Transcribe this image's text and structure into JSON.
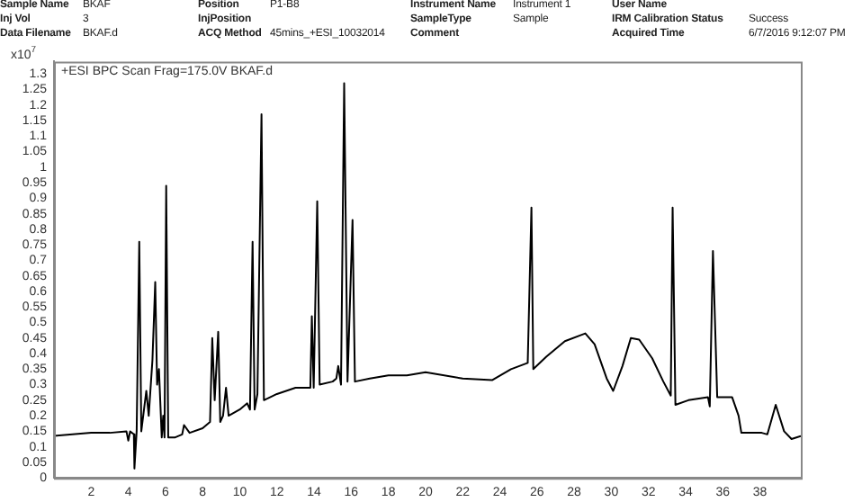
{
  "chart_data": {
    "type": "line",
    "title": "+ESI BPC Scan Frag=175.0V BKAF.d",
    "ylabel": "x10$^{7}$",
    "annotations": [
      "Sample Name",
      "BKAF",
      "Position",
      "P1-B8",
      "Instrument Name",
      "Instrument 1",
      "User Name",
      "Inj Vol",
      "3",
      "InjPosition",
      "SampleType",
      "Sample",
      "IRM Calibration Status",
      "Success",
      "Data Filename",
      "BKAF.d",
      "ACQ Method",
      "45mins_+ESI_10032014",
      "Comment",
      "Acquired Time",
      "6/7/2016 9:12:07 PM"
    ],
    "color": "#000000",
    "grid": false,
    "legend": false,
    "marker": "none",
    "line_style": "solid",
    "xlim": [
      0,
      40.2
    ],
    "xticks": [
      2,
      4,
      6,
      8,
      10,
      12,
      14,
      16,
      18,
      20,
      22,
      24,
      26,
      28,
      30,
      32,
      34,
      36,
      38
    ],
    "ylim": [
      0,
      1.34
    ],
    "yticks": [
      0,
      0.05,
      0.1,
      0.15,
      0.2,
      0.25,
      0.3,
      0.35,
      0.4,
      0.45,
      0.5,
      0.55,
      0.6,
      0.65,
      0.7,
      0.75,
      0.8,
      0.85,
      0.9,
      0.95,
      1,
      1.05,
      1.1,
      1.15,
      1.2,
      1.25,
      1.3
    ],
    "x": [
      0,
      1,
      2,
      3,
      3.9,
      4.0,
      4.1,
      4.3,
      4.33,
      4.45,
      4.59,
      4.7,
      4.97,
      5.1,
      5.3,
      5.45,
      5.55,
      5.65,
      5.8,
      5.88,
      5.95,
      6.04,
      6.15,
      6.5,
      6.9,
      7.0,
      7.3,
      8,
      8.4,
      8.52,
      8.65,
      8.84,
      8.95,
      9.1,
      9.26,
      9.4,
      10,
      10.4,
      10.55,
      10.69,
      10.8,
      10.95,
      11.17,
      11.3,
      12,
      13,
      13.8,
      13.88,
      13.98,
      14.17,
      14.3,
      15,
      15.2,
      15.3,
      15.45,
      15.62,
      15.8,
      16.07,
      16.2,
      17,
      18,
      19,
      20,
      22,
      23.6,
      24.6,
      25.5,
      25.7,
      25.8,
      26.5,
      27.5,
      28.6,
      29.1,
      29.75,
      30.1,
      30.6,
      31.05,
      31.5,
      32.2,
      32.8,
      33.2,
      33.3,
      33.45,
      34.15,
      35.2,
      35.3,
      35.47,
      35.7,
      36.5,
      36.85,
      37.0,
      38.1,
      38.4,
      38.85,
      39.3,
      39.7,
      40.2
    ],
    "values": [
      0.135,
      0.14,
      0.145,
      0.145,
      0.15,
      0.12,
      0.15,
      0.14,
      0.03,
      0.15,
      0.76,
      0.15,
      0.28,
      0.2,
      0.38,
      0.63,
      0.3,
      0.35,
      0.13,
      0.2,
      0.13,
      0.94,
      0.13,
      0.13,
      0.14,
      0.17,
      0.145,
      0.16,
      0.18,
      0.45,
      0.25,
      0.47,
      0.18,
      0.2,
      0.29,
      0.2,
      0.22,
      0.24,
      0.22,
      0.76,
      0.22,
      0.27,
      1.17,
      0.25,
      0.27,
      0.29,
      0.29,
      0.52,
      0.29,
      0.89,
      0.3,
      0.31,
      0.32,
      0.36,
      0.3,
      1.27,
      0.31,
      0.83,
      0.31,
      0.32,
      0.33,
      0.33,
      0.34,
      0.32,
      0.315,
      0.35,
      0.37,
      0.87,
      0.35,
      0.39,
      0.44,
      0.465,
      0.43,
      0.32,
      0.28,
      0.36,
      0.45,
      0.445,
      0.385,
      0.31,
      0.265,
      0.87,
      0.235,
      0.25,
      0.26,
      0.23,
      0.73,
      0.26,
      0.26,
      0.2,
      0.145,
      0.145,
      0.14,
      0.235,
      0.15,
      0.125,
      0.135
    ]
  }
}
